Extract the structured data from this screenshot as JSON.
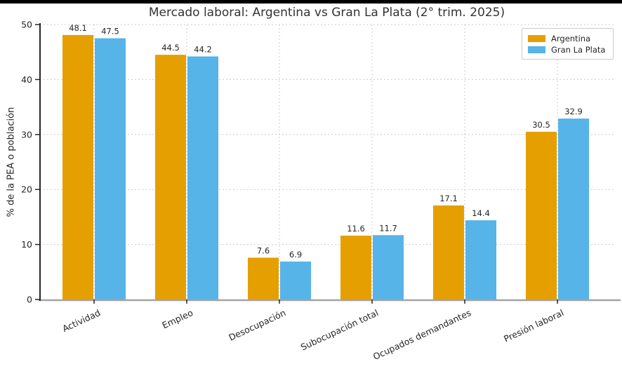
{
  "chart_data": {
    "type": "bar",
    "title": "Mercado laboral: Argentina vs Gran La Plata (2° trim. 2025)",
    "ylabel": "% de la PEA o población",
    "xlabel": "",
    "categories": [
      "Actividad",
      "Empleo",
      "Desocupación",
      "Subocupación total",
      "Ocupados demandantes",
      "Presión laboral"
    ],
    "series": [
      {
        "name": "Argentina",
        "color": "#E69F00",
        "values": [
          48.1,
          44.5,
          7.6,
          11.6,
          17.1,
          30.5
        ]
      },
      {
        "name": "Gran La Plata",
        "color": "#56B4E9",
        "values": [
          47.5,
          44.2,
          6.9,
          11.7,
          14.4,
          32.9
        ]
      }
    ],
    "ylim": [
      0,
      50
    ],
    "yticks": [
      0,
      10,
      20,
      30,
      40,
      50
    ],
    "grid": true,
    "value_labels": true,
    "legend_position": "upper-right",
    "colors": {
      "text": "#262626",
      "gridline": "#cccccc",
      "spine": "#262626",
      "axis_line": "#a3a3a3"
    }
  }
}
